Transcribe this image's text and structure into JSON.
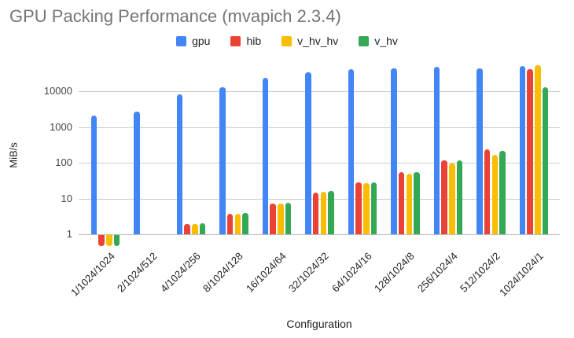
{
  "colors": {
    "background": "#ffffff",
    "title_text": "#757575",
    "axis_tick_text": "#444444",
    "category_text": "#222222",
    "gridline": "#cccccc",
    "series_gpu": "#4285F4",
    "series_hib": "#EA4335",
    "series_v_hv_hv": "#FBBC04",
    "series_v_hv": "#34A853"
  },
  "chart_data": {
    "type": "bar",
    "title": "GPU Packing Performance (mvapich 2.3.4)",
    "xlabel": "Configuration",
    "ylabel": "MiB/s",
    "y_scale": "log",
    "y_ticks": [
      1,
      10,
      100,
      1000,
      10000
    ],
    "y_tick_labels": [
      "1",
      "10",
      "100",
      "1000",
      "10000"
    ],
    "ylim": [
      0.45,
      80000
    ],
    "grid": true,
    "legend_position": "top",
    "categories": [
      "1/1024/1024",
      "2/1024/512",
      "4/1024/256",
      "8/1024/128",
      "16/1024/64",
      "32/1024/32",
      "64/1024/16",
      "128/1024/8",
      "256/1024/4",
      "512/1024/2",
      "1024/1024/1"
    ],
    "series": [
      {
        "name": "gpu",
        "color": "#4285F4",
        "values": [
          2100,
          2700,
          8200,
          13000,
          24000,
          35000,
          43000,
          45000,
          49000,
          45000,
          53000
        ]
      },
      {
        "name": "hib",
        "color": "#EA4335",
        "values": [
          0.5,
          1,
          1.9,
          3.8,
          7.3,
          15,
          28,
          55,
          118,
          240,
          42000
        ]
      },
      {
        "name": "v_hv_hv",
        "color": "#FBBC04",
        "values": [
          0.5,
          1,
          1.9,
          3.7,
          7.2,
          15.5,
          27,
          50,
          95,
          165,
          54000
        ]
      },
      {
        "name": "v_hv",
        "color": "#34A853",
        "values": [
          0.5,
          1,
          2.0,
          3.9,
          7.7,
          16,
          29,
          56,
          115,
          220,
          13000
        ]
      }
    ]
  }
}
